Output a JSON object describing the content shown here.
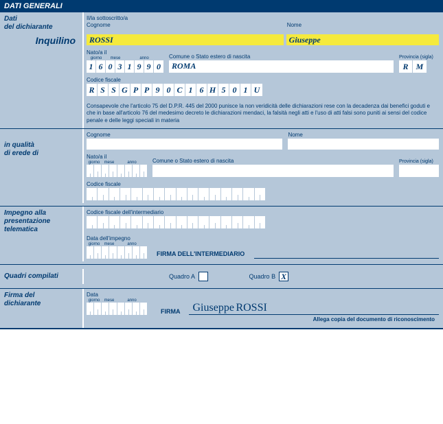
{
  "header": "DATI GENERALI",
  "dichiarante": {
    "section_label_line1": "Dati",
    "section_label_line2": "del dichiarante",
    "sottoscritto": "Il/la sottoscritto/a",
    "cognome_label": "Cognome",
    "cognome": "ROSSI",
    "nome_label": "Nome",
    "nome": "Giuseppe",
    "inquilino": "Inquilino",
    "nato_label": "Nato/a il",
    "date_chars": [
      "1",
      "6",
      "0",
      "3",
      "1",
      "9",
      "9",
      "0"
    ],
    "date_sub": [
      "giorno",
      "mese",
      "anno"
    ],
    "comune_label": "Comune o Stato estero di nascita",
    "comune": "ROMA",
    "prov_label": "Provincia (sigla)",
    "prov": [
      "R",
      "M"
    ],
    "cf_label": "Codice fiscale",
    "cf": [
      "R",
      "S",
      "S",
      "G",
      "P",
      "P",
      "9",
      "0",
      "C",
      "1",
      "6",
      "H",
      "5",
      "0",
      "1",
      "U"
    ],
    "legal": "Consapevole che l'articolo 75 del D.P.R. 445 del 2000 punisce la non veridicità delle dichiarazioni rese con la decadenza dai benefici goduti e che in base all'articolo 76 del medesimo decreto le dichiarazioni mendaci, la falsità negli atti e l'uso di atti falsi sono puniti ai sensi del codice penale e delle leggi speciali in materia"
  },
  "erede": {
    "section_label_line1": "in qualità",
    "section_label_line2": "di erede di",
    "cognome_label": "Cognome",
    "nome_label": "Nome",
    "nato_label": "Nato/a il",
    "comune_label": "Comune o Stato estero di nascita",
    "prov_label": "Provincia (sigla)",
    "cf_label": "Codice fiscale"
  },
  "impegno": {
    "section_label_line1": "Impegno alla",
    "section_label_line2": "presentazione",
    "section_label_line3": "telematica",
    "cf_int_label": "Codice fiscale dell'intermediario",
    "data_label": "Data dell'impegno",
    "firma_int": "FIRMA DELL'INTERMEDIARIO"
  },
  "quadri": {
    "section_label": "Quadri compilati",
    "a_label": "Quadro A",
    "a_val": "",
    "b_label": "Quadro B",
    "b_val": "X"
  },
  "firma": {
    "section_label_line1": "Firma del",
    "section_label_line2": "dichiarante",
    "data_label": "Data",
    "firma_label": "FIRMA",
    "sig_first": "Giuseppe",
    "sig_last": "ROSSI",
    "allega": "Allega copia del documento di riconoscimento"
  },
  "date_sub": {
    "g": "giorno",
    "m": "mese",
    "a": "anno"
  }
}
